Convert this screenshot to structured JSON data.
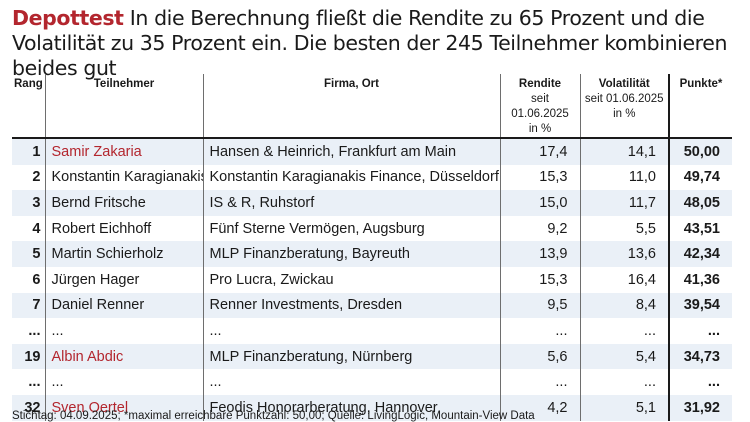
{
  "headline": {
    "kicker": "Depottest",
    "text": " In die Berechnung fließt die Rendite zu 65 Prozent und die Volatilität zu 35 Prozent ein. Die besten der 245 Teilnehmer kombinieren beides gut"
  },
  "table": {
    "headers": {
      "rank": "Rang",
      "participant": "Teilnehmer",
      "company": "Firma, Ort",
      "return": "Rendite",
      "return_sub1": "seit 01.06.2025",
      "return_sub2": "in %",
      "volatility": "Volatilität",
      "volatility_sub1": "seit 01.06.2025",
      "volatility_sub2": "in %",
      "points": "Punkte*"
    },
    "rows": [
      {
        "rank": "1",
        "name": "Samir Zakaria",
        "company": "Hansen & Heinrich, Frankfurt am Main",
        "return": "17,4",
        "volatility": "14,1",
        "points": "50,00"
      },
      {
        "rank": "2",
        "name": "Konstantin Karagianakis",
        "company": "Konstantin Karagianakis Finance, Düsseldorf",
        "return": "15,3",
        "volatility": "11,0",
        "points": "49,74"
      },
      {
        "rank": "3",
        "name": "Bernd Fritsche",
        "company": "IS & R, Ruhstorf",
        "return": "15,0",
        "volatility": "11,7",
        "points": "48,05"
      },
      {
        "rank": "4",
        "name": "Robert Eichhoff",
        "company": "Fünf Sterne Vermögen, Augsburg",
        "return": "9,2",
        "volatility": "5,5",
        "points": "43,51"
      },
      {
        "rank": "5",
        "name": "Martin Schierholz",
        "company": "MLP Finanzberatung, Bayreuth",
        "return": "13,9",
        "volatility": "13,6",
        "points": "42,34"
      },
      {
        "rank": "6",
        "name": "Jürgen Hager",
        "company": "Pro Lucra, Zwickau",
        "return": "15,3",
        "volatility": "16,4",
        "points": "41,36"
      },
      {
        "rank": "7",
        "name": "Daniel Renner",
        "company": "Renner Investments, Dresden",
        "return": "9,5",
        "volatility": "8,4",
        "points": "39,54"
      },
      {
        "rank": "...",
        "name": "...",
        "company": "...",
        "return": "...",
        "volatility": "...",
        "points": "..."
      },
      {
        "rank": "19",
        "name": "Albin Abdic",
        "company": "MLP Finanzberatung, Nürnberg",
        "return": "5,6",
        "volatility": "5,4",
        "points": "34,73"
      },
      {
        "rank": "...",
        "name": "...",
        "company": "...",
        "return": "...",
        "volatility": "...",
        "points": "..."
      },
      {
        "rank": "32",
        "name": "Sven Oertel",
        "company": "Feodis Honorarberatung, Hannover",
        "return": "4,2",
        "volatility": "5,1",
        "points": "31,92"
      }
    ]
  },
  "footnote": "Stichtag: 04.09.2025; *maximal erreichbare Punktzahl: 50,00; Quelle: LivingLogic, Mountain-View Data",
  "colors": {
    "accent_red": "#b3262e",
    "row_shade": "#eaf0f7"
  }
}
